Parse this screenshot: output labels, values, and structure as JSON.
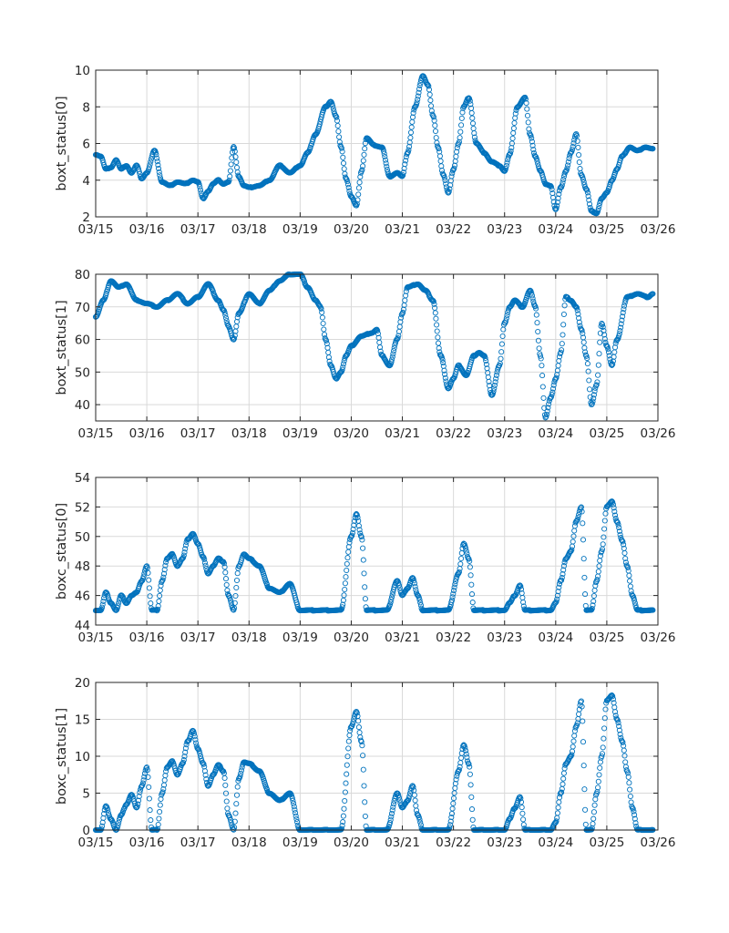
{
  "figure": {
    "marker_color": "#0072BD",
    "marker_shape": "open-circle"
  },
  "chart_data": [
    {
      "type": "scatter",
      "ylabel": "boxt_status[0]",
      "xlabel": "",
      "x_tick_labels": [
        "03/15",
        "03/16",
        "03/17",
        "03/18",
        "03/19",
        "03/20",
        "03/21",
        "03/22",
        "03/23",
        "03/24",
        "03/25",
        "03/26"
      ],
      "xlim": [
        0,
        11
      ],
      "ylim": [
        2,
        10
      ],
      "y_ticks": [
        2,
        4,
        6,
        8,
        10
      ],
      "grid": true,
      "series": [
        {
          "name": "boxt_status[0]",
          "x": [
            0,
            0.1,
            0.2,
            0.3,
            0.4,
            0.5,
            0.6,
            0.7,
            0.8,
            0.9,
            1.0,
            1.15,
            1.3,
            1.45,
            1.6,
            1.75,
            1.9,
            2.0,
            2.1,
            2.2,
            2.3,
            2.4,
            2.5,
            2.6,
            2.7,
            2.8,
            2.9,
            3.0,
            3.2,
            3.4,
            3.6,
            3.8,
            4.0,
            4.15,
            4.3,
            4.5,
            4.6,
            4.7,
            4.8,
            4.9,
            5.0,
            5.1,
            5.2,
            5.3,
            5.45,
            5.6,
            5.75,
            5.9,
            6.0,
            6.1,
            6.25,
            6.4,
            6.5,
            6.6,
            6.7,
            6.8,
            6.9,
            7.0,
            7.1,
            7.2,
            7.3,
            7.45,
            7.6,
            7.75,
            7.9,
            8.0,
            8.1,
            8.25,
            8.4,
            8.5,
            8.6,
            8.7,
            8.8,
            8.9,
            9.0,
            9.1,
            9.2,
            9.3,
            9.4,
            9.5,
            9.6,
            9.7,
            9.8,
            9.9,
            10.0,
            10.1,
            10.2,
            10.3,
            10.45,
            10.6,
            10.75,
            10.9
          ],
          "y": [
            5.4,
            5.3,
            4.6,
            4.7,
            5.1,
            4.6,
            4.8,
            4.4,
            4.8,
            4.1,
            4.4,
            5.6,
            3.9,
            3.7,
            3.9,
            3.8,
            4.0,
            3.9,
            3.0,
            3.4,
            3.8,
            4.0,
            3.8,
            3.9,
            5.8,
            4.2,
            3.7,
            3.6,
            3.7,
            4.0,
            4.8,
            4.4,
            4.8,
            5.5,
            6.5,
            8.0,
            8.3,
            7.5,
            5.8,
            4.1,
            3.1,
            2.6,
            4.5,
            6.3,
            5.9,
            5.8,
            4.2,
            4.4,
            4.2,
            5.5,
            8.0,
            9.7,
            9.2,
            7.5,
            5.8,
            4.3,
            3.3,
            4.6,
            6.0,
            8.0,
            8.5,
            6.0,
            5.5,
            5.0,
            4.8,
            4.5,
            5.4,
            8.0,
            8.5,
            6.5,
            5.3,
            4.5,
            3.8,
            3.7,
            2.4,
            3.6,
            4.5,
            5.5,
            6.5,
            4.3,
            3.5,
            2.3,
            2.2,
            3.0,
            3.3,
            4.0,
            4.6,
            5.3,
            5.8,
            5.6,
            5.8,
            5.7
          ]
        }
      ]
    },
    {
      "type": "scatter",
      "ylabel": "boxt_status[1]",
      "xlabel": "",
      "x_tick_labels": [
        "03/15",
        "03/16",
        "03/17",
        "03/18",
        "03/19",
        "03/20",
        "03/21",
        "03/22",
        "03/23",
        "03/24",
        "03/25",
        "03/26"
      ],
      "xlim": [
        0,
        11
      ],
      "ylim": [
        35,
        80
      ],
      "y_ticks": [
        40,
        50,
        60,
        70,
        80
      ],
      "grid": true,
      "series": [
        {
          "name": "boxt_status[1]",
          "x": [
            0,
            0.15,
            0.3,
            0.45,
            0.6,
            0.8,
            1.0,
            1.2,
            1.4,
            1.6,
            1.8,
            2.0,
            2.2,
            2.4,
            2.5,
            2.6,
            2.7,
            2.8,
            3.0,
            3.2,
            3.4,
            3.6,
            3.8,
            4.0,
            4.15,
            4.3,
            4.4,
            4.5,
            4.6,
            4.7,
            4.8,
            4.9,
            5.0,
            5.2,
            5.4,
            5.5,
            5.6,
            5.75,
            5.9,
            6.0,
            6.1,
            6.3,
            6.45,
            6.6,
            6.75,
            6.9,
            7.0,
            7.1,
            7.25,
            7.4,
            7.5,
            7.6,
            7.75,
            7.9,
            8.0,
            8.1,
            8.2,
            8.35,
            8.5,
            8.6,
            8.7,
            8.8,
            8.9,
            9.0,
            9.1,
            9.2,
            9.3,
            9.4,
            9.5,
            9.6,
            9.7,
            9.8,
            9.9,
            10.0,
            10.1,
            10.2,
            10.4,
            10.6,
            10.8,
            10.9
          ],
          "y": [
            67,
            72,
            78,
            76,
            77,
            72,
            71,
            70,
            72,
            74,
            71,
            73,
            77,
            72,
            69,
            64,
            60,
            68,
            74,
            71,
            75,
            78,
            80,
            80,
            76,
            72,
            70,
            60,
            52,
            48,
            50,
            55,
            58,
            61,
            62,
            63,
            55,
            52,
            60,
            68,
            76,
            77,
            75,
            72,
            55,
            45,
            48,
            52,
            49,
            55,
            56,
            55,
            43,
            52,
            65,
            70,
            72,
            70,
            75,
            70,
            55,
            36,
            42,
            48,
            56,
            73,
            72,
            70,
            63,
            55,
            40,
            46,
            65,
            58,
            52,
            60,
            73,
            74,
            73,
            74
          ]
        }
      ]
    },
    {
      "type": "scatter",
      "ylabel": "boxc_status[0]",
      "xlabel": "",
      "x_tick_labels": [
        "03/15",
        "03/16",
        "03/17",
        "03/18",
        "03/19",
        "03/20",
        "03/21",
        "03/22",
        "03/23",
        "03/24",
        "03/25",
        "03/26"
      ],
      "xlim": [
        0,
        11
      ],
      "ylim": [
        44,
        54
      ],
      "y_ticks": [
        44,
        46,
        48,
        50,
        52,
        54
      ],
      "grid": true,
      "series": [
        {
          "name": "boxc_status[0]",
          "x": [
            0,
            0.1,
            0.2,
            0.3,
            0.4,
            0.5,
            0.6,
            0.7,
            0.8,
            0.9,
            1.0,
            1.1,
            1.2,
            1.3,
            1.4,
            1.5,
            1.6,
            1.7,
            1.8,
            1.9,
            2.0,
            2.1,
            2.2,
            2.3,
            2.4,
            2.5,
            2.6,
            2.7,
            2.8,
            2.9,
            3.0,
            3.2,
            3.4,
            3.6,
            3.8,
            4.0,
            4.2,
            4.4,
            4.6,
            4.8,
            5.0,
            5.1,
            5.2,
            5.3,
            5.4,
            5.5,
            5.7,
            5.9,
            6.0,
            6.1,
            6.2,
            6.3,
            6.4,
            6.5,
            6.7,
            6.9,
            7.1,
            7.2,
            7.3,
            7.4,
            7.5,
            7.6,
            7.8,
            8.0,
            8.1,
            8.2,
            8.3,
            8.4,
            8.5,
            8.7,
            8.9,
            9.0,
            9.1,
            9.2,
            9.3,
            9.4,
            9.5,
            9.6,
            9.7,
            9.8,
            9.9,
            10.0,
            10.1,
            10.2,
            10.3,
            10.4,
            10.5,
            10.6,
            10.7,
            10.8,
            10.9
          ],
          "y": [
            45,
            45,
            46.2,
            45.5,
            45,
            46,
            45.5,
            46,
            46.2,
            47,
            48,
            45,
            45,
            47,
            48.5,
            48.8,
            48,
            48.5,
            49.8,
            50.2,
            49.5,
            48.6,
            47.5,
            48,
            48.5,
            48.3,
            46,
            45,
            48,
            48.8,
            48.5,
            48,
            46.5,
            46.2,
            46.8,
            45,
            45,
            45,
            45,
            45,
            50,
            51.5,
            50,
            45,
            45,
            45,
            45,
            47,
            46,
            46.5,
            47.2,
            46,
            45,
            45,
            45,
            45,
            47.5,
            49.5,
            48.5,
            45,
            45,
            45,
            45,
            45,
            45.5,
            46,
            46.7,
            45,
            45,
            45,
            45,
            45.5,
            47,
            48.5,
            49,
            51,
            52,
            45,
            45,
            47,
            49,
            52,
            52.4,
            51,
            49.7,
            48,
            46,
            45,
            45,
            45,
            45
          ]
        }
      ]
    },
    {
      "type": "scatter",
      "ylabel": "boxc_status[1]",
      "xlabel": "",
      "x_tick_labels": [
        "03/15",
        "03/16",
        "03/17",
        "03/18",
        "03/19",
        "03/20",
        "03/21",
        "03/22",
        "03/23",
        "03/24",
        "03/25",
        "03/26"
      ],
      "xlim": [
        0,
        11
      ],
      "ylim": [
        0,
        20
      ],
      "y_ticks": [
        0,
        5,
        10,
        15,
        20
      ],
      "grid": true,
      "series": [
        {
          "name": "boxc_status[1]",
          "x": [
            0,
            0.1,
            0.2,
            0.3,
            0.4,
            0.5,
            0.6,
            0.7,
            0.8,
            0.9,
            1.0,
            1.1,
            1.2,
            1.3,
            1.4,
            1.5,
            1.6,
            1.7,
            1.8,
            1.9,
            2.0,
            2.1,
            2.2,
            2.3,
            2.4,
            2.5,
            2.6,
            2.7,
            2.8,
            2.9,
            3.0,
            3.2,
            3.4,
            3.6,
            3.8,
            4.0,
            4.2,
            4.4,
            4.6,
            4.8,
            5.0,
            5.1,
            5.2,
            5.3,
            5.4,
            5.5,
            5.7,
            5.9,
            6.0,
            6.1,
            6.2,
            6.3,
            6.4,
            6.5,
            6.7,
            6.9,
            7.1,
            7.2,
            7.3,
            7.4,
            7.5,
            7.6,
            7.8,
            8.0,
            8.1,
            8.2,
            8.3,
            8.4,
            8.5,
            8.7,
            8.9,
            9.0,
            9.1,
            9.2,
            9.3,
            9.4,
            9.5,
            9.6,
            9.7,
            9.8,
            9.9,
            10.0,
            10.1,
            10.2,
            10.3,
            10.4,
            10.5,
            10.6,
            10.7,
            10.8,
            10.9
          ],
          "y": [
            0,
            0,
            3.2,
            1.5,
            0,
            2,
            3.5,
            4.8,
            3,
            6,
            8.5,
            0,
            0,
            5,
            8.5,
            9.3,
            7.5,
            9,
            12,
            13.5,
            11,
            9,
            6,
            7.5,
            8.8,
            8,
            2,
            0,
            7,
            9.2,
            9,
            8,
            5,
            4,
            5,
            0,
            0,
            0,
            0,
            0,
            14,
            16,
            12,
            0,
            0,
            0,
            0,
            5,
            3,
            4,
            6,
            2,
            0,
            0,
            0,
            0,
            8,
            11.5,
            9,
            0,
            0,
            0,
            0,
            0,
            1.5,
            3,
            4.5,
            0,
            0,
            0,
            0,
            1,
            5,
            9,
            10,
            14,
            17.5,
            0,
            0,
            5,
            10,
            17.5,
            18.3,
            15,
            12,
            8,
            3,
            0,
            0,
            0,
            0
          ]
        }
      ]
    }
  ]
}
